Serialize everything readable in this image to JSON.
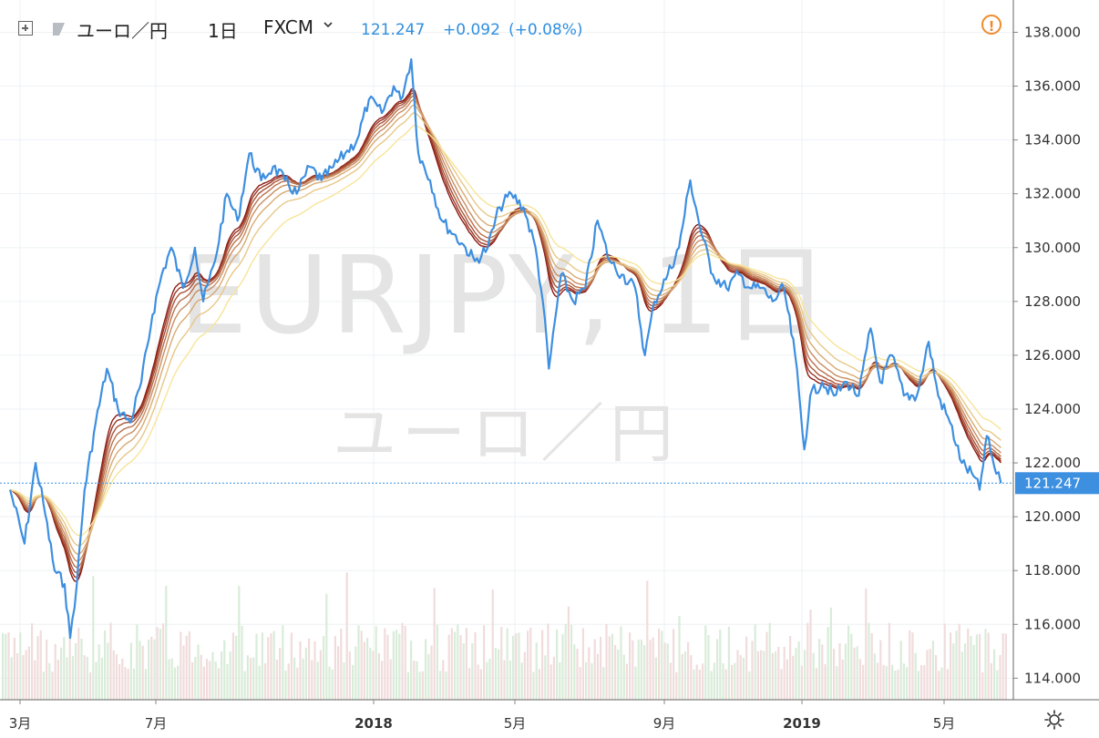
{
  "header": {
    "symbol": "ユーロ／円",
    "interval": "1日",
    "exchange": "FXCM",
    "last_price": "121.247",
    "change": "+0.092",
    "change_pct": "(+0.08%)"
  },
  "watermark": {
    "ticker": "EURJPY, 1日",
    "description": "ユーロ／円"
  },
  "icons": {
    "expand": "plus-box-icon",
    "flag": "flag-icon",
    "dropdown": "chevron-down-icon",
    "alert": "exclamation-circle-icon",
    "settings": "gear-icon"
  },
  "colors": {
    "price_line": "#3d8fe0",
    "ema_fast": "#f7e49a",
    "ema_slow": "#8b1a12",
    "last_price_label": "#3d8fe0",
    "alert": "#f08a2c"
  },
  "chart_data": {
    "type": "line",
    "y_axis": {
      "position": "right",
      "ylim": [
        113.2,
        139.2
      ],
      "ticks": [
        "114.000",
        "116.000",
        "118.000",
        "120.000",
        "122.000",
        "124.000",
        "126.000",
        "128.000",
        "130.000",
        "132.000",
        "134.000",
        "136.000",
        "138.000"
      ]
    },
    "x_axis": {
      "ticks": [
        {
          "label": "3月",
          "date": "2017-03"
        },
        {
          "label": "7月",
          "date": "2017-07"
        },
        {
          "label": "2018",
          "date": "2018-01"
        },
        {
          "label": "5月",
          "date": "2018-05"
        },
        {
          "label": "9月",
          "date": "2018-09"
        },
        {
          "label": "2019",
          "date": "2019-01"
        },
        {
          "label": "5月",
          "date": "2019-05"
        }
      ],
      "bold_ticks": [
        "2018",
        "2019"
      ]
    },
    "grid": true,
    "last_value": "121.247",
    "series": [
      {
        "kind": "price",
        "points": [
          [
            "2017-02-20",
            121.0
          ],
          [
            "2017-03-05",
            119.0
          ],
          [
            "2017-03-15",
            122.0
          ],
          [
            "2017-03-22",
            120.5
          ],
          [
            "2017-04-01",
            118.0
          ],
          [
            "2017-04-10",
            117.5
          ],
          [
            "2017-04-15",
            115.5
          ],
          [
            "2017-04-21",
            117.5
          ],
          [
            "2017-04-28",
            121.0
          ],
          [
            "2017-05-08",
            123.5
          ],
          [
            "2017-05-18",
            125.5
          ],
          [
            "2017-05-28",
            124.0
          ],
          [
            "2017-06-08",
            123.5
          ],
          [
            "2017-06-18",
            125.0
          ],
          [
            "2017-06-28",
            127.5
          ],
          [
            "2017-07-06",
            129.0
          ],
          [
            "2017-07-14",
            130.0
          ],
          [
            "2017-07-24",
            128.5
          ],
          [
            "2017-08-03",
            130.0
          ],
          [
            "2017-08-10",
            128.0
          ],
          [
            "2017-08-20",
            129.5
          ],
          [
            "2017-08-30",
            132.0
          ],
          [
            "2017-09-08",
            131.0
          ],
          [
            "2017-09-18",
            133.5
          ],
          [
            "2017-09-28",
            132.5
          ],
          [
            "2017-10-08",
            133.0
          ],
          [
            "2017-10-18",
            132.5
          ],
          [
            "2017-10-28",
            132.0
          ],
          [
            "2017-11-08",
            133.0
          ],
          [
            "2017-11-18",
            132.5
          ],
          [
            "2017-11-28",
            133.0
          ],
          [
            "2017-12-08",
            133.5
          ],
          [
            "2017-12-18",
            134.0
          ],
          [
            "2017-12-28",
            135.5
          ],
          [
            "2018-01-08",
            135.0
          ],
          [
            "2018-01-18",
            136.0
          ],
          [
            "2018-01-24",
            135.5
          ],
          [
            "2018-02-02",
            137.0
          ],
          [
            "2018-02-08",
            133.5
          ],
          [
            "2018-02-18",
            132.5
          ],
          [
            "2018-02-28",
            131.0
          ],
          [
            "2018-03-10",
            130.5
          ],
          [
            "2018-03-20",
            130.0
          ],
          [
            "2018-03-28",
            129.5
          ],
          [
            "2018-04-08",
            130.0
          ],
          [
            "2018-04-18",
            131.5
          ],
          [
            "2018-04-28",
            132.0
          ],
          [
            "2018-05-08",
            131.5
          ],
          [
            "2018-05-18",
            130.0
          ],
          [
            "2018-05-24",
            128.0
          ],
          [
            "2018-05-29",
            125.5
          ],
          [
            "2018-06-08",
            129.0
          ],
          [
            "2018-06-18",
            128.0
          ],
          [
            "2018-06-28",
            128.5
          ],
          [
            "2018-07-08",
            131.0
          ],
          [
            "2018-07-18",
            129.5
          ],
          [
            "2018-07-28",
            129.0
          ],
          [
            "2018-08-08",
            128.5
          ],
          [
            "2018-08-16",
            126.0
          ],
          [
            "2018-08-24",
            128.0
          ],
          [
            "2018-09-04",
            129.0
          ],
          [
            "2018-09-14",
            130.0
          ],
          [
            "2018-09-24",
            132.5
          ],
          [
            "2018-10-04",
            130.5
          ],
          [
            "2018-10-14",
            129.0
          ],
          [
            "2018-10-26",
            128.5
          ],
          [
            "2018-11-06",
            129.0
          ],
          [
            "2018-11-16",
            128.5
          ],
          [
            "2018-11-26",
            128.5
          ],
          [
            "2018-12-06",
            128.0
          ],
          [
            "2018-12-16",
            128.5
          ],
          [
            "2018-12-26",
            126.0
          ],
          [
            "2019-01-03",
            122.5
          ],
          [
            "2019-01-08",
            124.5
          ],
          [
            "2019-01-18",
            125.0
          ],
          [
            "2019-01-28",
            124.5
          ],
          [
            "2019-02-08",
            125.0
          ],
          [
            "2019-02-18",
            124.5
          ],
          [
            "2019-02-28",
            127.0
          ],
          [
            "2019-03-08",
            125.0
          ],
          [
            "2019-03-18",
            126.0
          ],
          [
            "2019-03-28",
            124.5
          ],
          [
            "2019-04-08",
            124.5
          ],
          [
            "2019-04-18",
            126.5
          ],
          [
            "2019-04-26",
            124.5
          ],
          [
            "2019-05-06",
            123.5
          ],
          [
            "2019-05-16",
            122.0
          ],
          [
            "2019-05-26",
            121.5
          ],
          [
            "2019-05-31",
            121.0
          ],
          [
            "2019-06-06",
            123.0
          ],
          [
            "2019-06-14",
            121.6
          ],
          [
            "2019-06-18",
            121.247
          ]
        ]
      }
    ],
    "ema_ribbon": {
      "count": 8,
      "from_color": "#f7e49a",
      "to_color": "#8b1a12"
    },
    "volume_bars": {
      "present": true,
      "colors": [
        "#d9ecd9",
        "#f1dcdc"
      ]
    }
  }
}
